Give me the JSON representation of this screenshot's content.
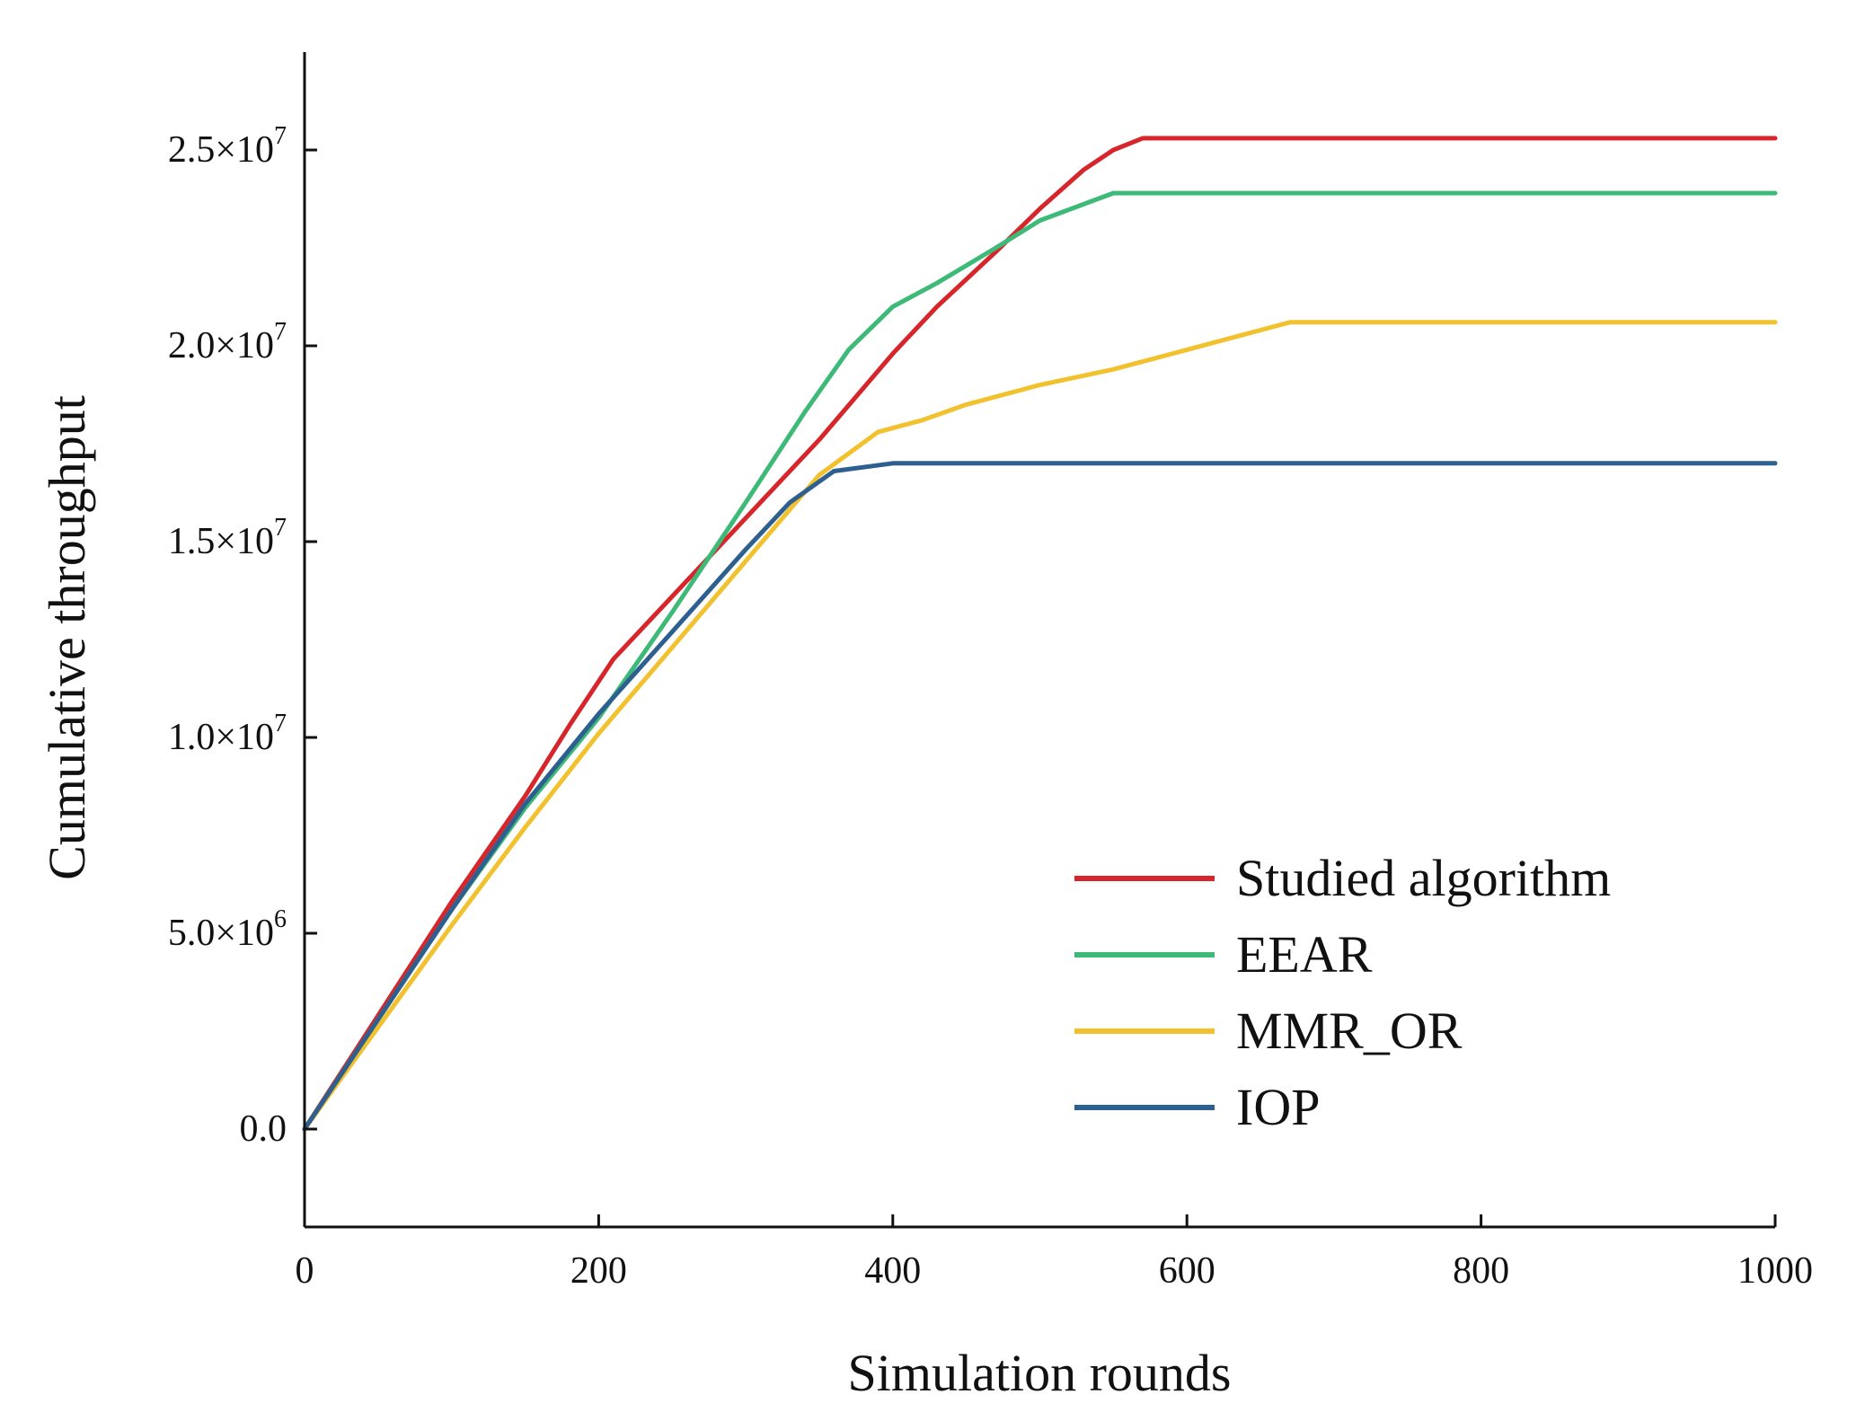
{
  "chart_data": {
    "type": "line",
    "title": "",
    "xlabel": "Simulation rounds",
    "ylabel": "Cumulative throughput",
    "xlim": [
      0,
      1000
    ],
    "ylim": [
      -2500000,
      27500000
    ],
    "x_ticks": [
      {
        "value": 0,
        "label": "0"
      },
      {
        "value": 200,
        "label": "200"
      },
      {
        "value": 400,
        "label": "400"
      },
      {
        "value": 600,
        "label": "600"
      },
      {
        "value": 800,
        "label": "800"
      },
      {
        "value": 1000,
        "label": "1000"
      }
    ],
    "y_ticks": [
      {
        "value": 0,
        "mantissa": "0.0",
        "exponent": ""
      },
      {
        "value": 5000000,
        "mantissa": "5.0×10",
        "exponent": "6"
      },
      {
        "value": 10000000,
        "mantissa": "1.0×10",
        "exponent": "7"
      },
      {
        "value": 15000000,
        "mantissa": "1.5×10",
        "exponent": "7"
      },
      {
        "value": 20000000,
        "mantissa": "2.0×10",
        "exponent": "7"
      },
      {
        "value": 25000000,
        "mantissa": "2.5×10",
        "exponent": "7"
      }
    ],
    "grid": false,
    "legend_position": "bottom-right",
    "series": [
      {
        "name": "Studied algorithm",
        "color": "#d7262b",
        "points": [
          [
            0,
            0
          ],
          [
            50,
            2900000
          ],
          [
            100,
            5800000
          ],
          [
            150,
            8500000
          ],
          [
            180,
            10300000
          ],
          [
            210,
            12000000
          ],
          [
            230,
            12800000
          ],
          [
            260,
            14000000
          ],
          [
            300,
            15600000
          ],
          [
            350,
            17600000
          ],
          [
            400,
            19800000
          ],
          [
            430,
            21000000
          ],
          [
            470,
            22400000
          ],
          [
            500,
            23500000
          ],
          [
            530,
            24500000
          ],
          [
            550,
            25000000
          ],
          [
            570,
            25300000
          ],
          [
            1000,
            25300000
          ]
        ]
      },
      {
        "name": "EEAR",
        "color": "#3dba78",
        "points": [
          [
            0,
            0
          ],
          [
            50,
            2800000
          ],
          [
            100,
            5600000
          ],
          [
            150,
            8200000
          ],
          [
            200,
            10500000
          ],
          [
            250,
            13200000
          ],
          [
            300,
            16000000
          ],
          [
            340,
            18300000
          ],
          [
            370,
            19900000
          ],
          [
            400,
            21000000
          ],
          [
            430,
            21600000
          ],
          [
            470,
            22500000
          ],
          [
            500,
            23200000
          ],
          [
            550,
            23900000
          ],
          [
            1000,
            23900000
          ]
        ]
      },
      {
        "name": "MMR_OR",
        "color": "#f2c12e",
        "points": [
          [
            0,
            0
          ],
          [
            50,
            2600000
          ],
          [
            100,
            5200000
          ],
          [
            150,
            7700000
          ],
          [
            200,
            10100000
          ],
          [
            250,
            12300000
          ],
          [
            300,
            14500000
          ],
          [
            350,
            16700000
          ],
          [
            390,
            17800000
          ],
          [
            420,
            18100000
          ],
          [
            450,
            18500000
          ],
          [
            500,
            19000000
          ],
          [
            550,
            19400000
          ],
          [
            600,
            19900000
          ],
          [
            640,
            20300000
          ],
          [
            670,
            20600000
          ],
          [
            1000,
            20600000
          ]
        ]
      },
      {
        "name": "IOP",
        "color": "#2d5f8f",
        "points": [
          [
            0,
            0
          ],
          [
            50,
            2800000
          ],
          [
            100,
            5600000
          ],
          [
            150,
            8300000
          ],
          [
            200,
            10600000
          ],
          [
            250,
            12700000
          ],
          [
            300,
            14800000
          ],
          [
            330,
            16000000
          ],
          [
            360,
            16800000
          ],
          [
            400,
            17000000
          ],
          [
            1000,
            17000000
          ]
        ]
      }
    ]
  }
}
